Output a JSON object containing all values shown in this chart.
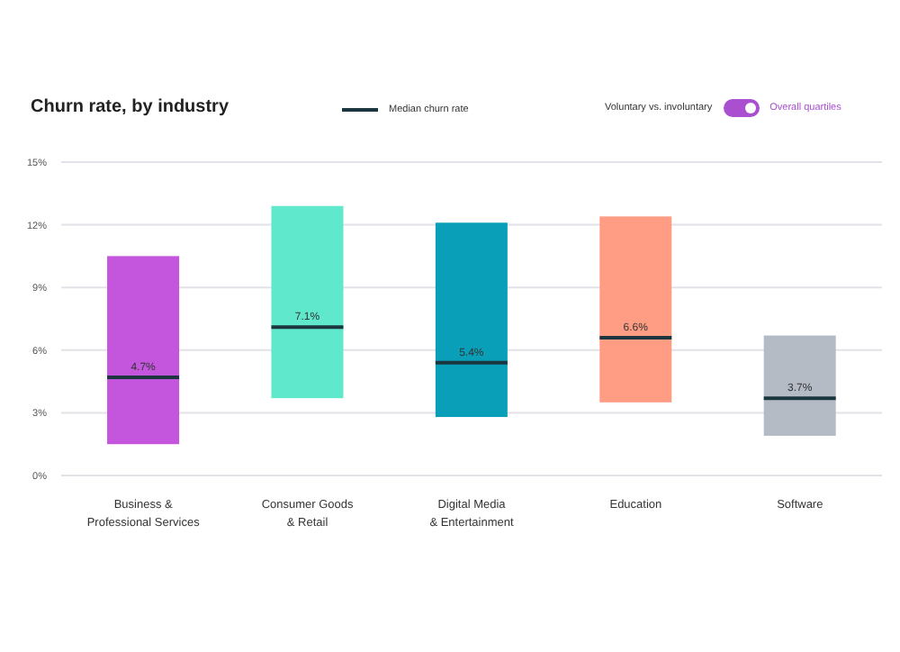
{
  "chart_data": {
    "type": "box",
    "title": "Churn rate, by industry",
    "annotations": [
      "Voluntary vs. involuntary",
      "Overall quartiles"
    ],
    "categories": [
      "Business &\nProfessional Services",
      "Consumer Goods\n& Retail",
      "Digital Media\n& Entertainment",
      "Education",
      "Software"
    ],
    "series": [
      {
        "name": "Median churn rate",
        "color": "#1c3640",
        "colors": [
          "#c455dd",
          "#5fe8cc",
          "#0a9fb8",
          "#ff9c84",
          "#b4bbc5"
        ],
        "value_labels": [
          "4.7%",
          "7.1%",
          "5.4%",
          "6.6%",
          "3.7%"
        ],
        "boxes": [
          {
            "low": 1.5,
            "q1": 1.5,
            "median": 4.7,
            "q3": 10.5,
            "high": 10.5
          },
          {
            "low": 3.7,
            "q1": 3.7,
            "median": 7.1,
            "q3": 12.9,
            "high": 12.9
          },
          {
            "low": 2.8,
            "q1": 2.8,
            "median": 5.4,
            "q3": 12.1,
            "high": 12.1
          },
          {
            "low": 3.5,
            "q1": 3.5,
            "median": 6.6,
            "q3": 12.4,
            "high": 12.4
          },
          {
            "low": 1.9,
            "q1": 1.9,
            "median": 3.7,
            "q3": 6.7,
            "high": 6.7
          }
        ]
      }
    ],
    "ylim": [
      0,
      15
    ],
    "yticks": [
      {
        "value": 0,
        "label": "0%"
      },
      {
        "value": 3,
        "label": "3%"
      },
      {
        "value": 6,
        "label": "6%"
      },
      {
        "value": 9,
        "label": "9%"
      },
      {
        "value": 12,
        "label": "12%"
      },
      {
        "value": 15,
        "label": "15%"
      }
    ],
    "grid": "y",
    "legend": "top"
  }
}
